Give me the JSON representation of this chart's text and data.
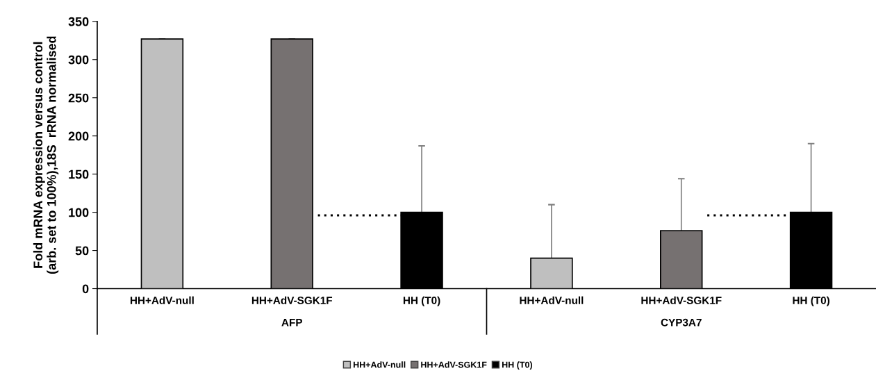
{
  "chart_data": {
    "type": "bar",
    "ylabel": "Fold mRNA expression versus control\n(arb. set to 100%),18S  rRNA normalised",
    "categories": [
      "HH+AdV-null",
      "HH+AdV-SGK1F",
      "HH (T0)",
      "HH+AdV-null",
      "HH+AdV-SGK1F",
      "HH (T0)"
    ],
    "series": [
      {
        "name": "HH+AdV-null",
        "color": "#bfbfbf",
        "values": [
          327,
          null,
          null,
          40,
          null,
          null
        ],
        "errors": [
          [
            327,
            327
          ],
          null,
          null,
          [
            40,
            110
          ],
          null,
          null
        ]
      },
      {
        "name": "HH+AdV-SGK1F",
        "color": "#767171",
        "values": [
          null,
          327,
          null,
          null,
          76,
          null
        ],
        "errors": [
          null,
          [
            327,
            327
          ],
          null,
          null,
          [
            76,
            144
          ],
          null
        ]
      },
      {
        "name": "HH (T0)",
        "color": "#000000",
        "values": [
          null,
          null,
          100,
          null,
          null,
          100
        ],
        "errors": [
          null,
          null,
          [
            100,
            187
          ],
          null,
          null,
          [
            100,
            190
          ]
        ]
      }
    ],
    "annotations": [
      "AFP",
      "CYP3A7"
    ],
    "ref_lines": [
      {
        "axis": "y",
        "value": 96,
        "line_style": "dotted",
        "color": "#000000"
      }
    ],
    "ylim": [
      0,
      350
    ],
    "yticks": [
      0,
      50,
      100,
      150,
      200,
      250,
      300,
      350
    ],
    "grid": false,
    "legend": "bottom"
  }
}
